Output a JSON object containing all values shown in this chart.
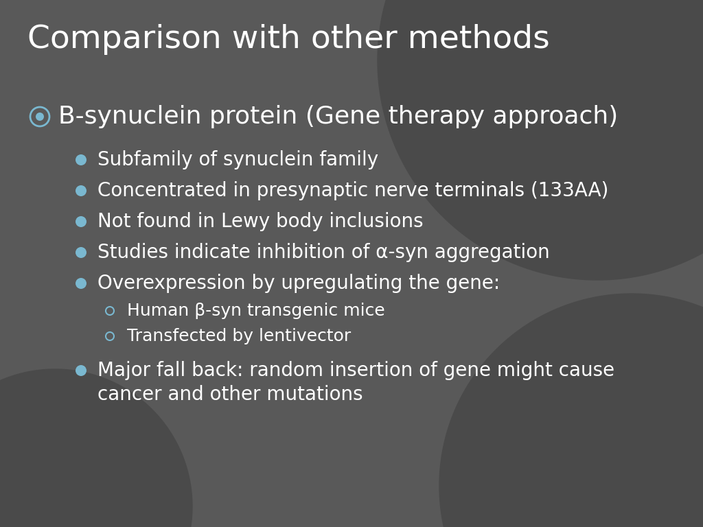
{
  "title": "Comparison with other methods",
  "bg_color": "#595959",
  "blob_color": "#4a4a4a",
  "text_color": "#ffffff",
  "bullet_color": "#7ab8d0",
  "title_fontsize": 34,
  "level1_fontsize": 26,
  "level2_fontsize": 20,
  "level3_fontsize": 18,
  "level1_item": "B-synuclein protein (Gene therapy approach)",
  "level2_items": [
    "Subfamily of synuclein family",
    "Concentrated in presynaptic nerve terminals (133AA)",
    "Not found in Lewy body inclusions",
    "Studies indicate inhibition of α-syn aggregation",
    "Overexpression by upregulating the gene:"
  ],
  "level3_items": [
    "Human β-syn transgenic mice",
    "Transfected by lentivector"
  ],
  "level2_last_line1": "Major fall back: random insertion of gene might cause",
  "level2_last_line2": "cancer and other mutations"
}
